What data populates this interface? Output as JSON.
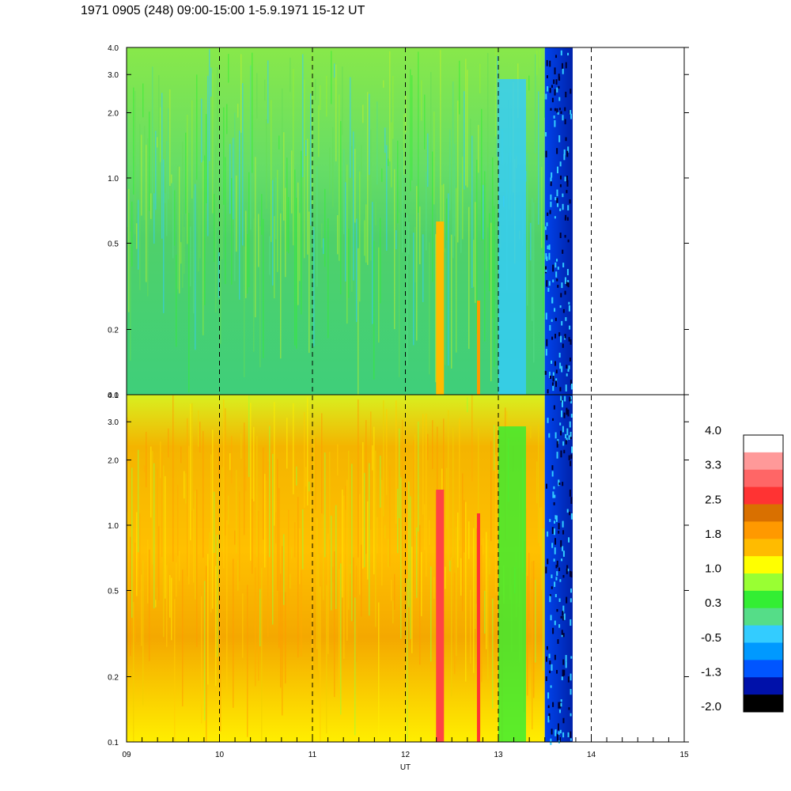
{
  "title": "1971 0905 (248) 09:00-15:00 1-5.9.1971  15-12 UT",
  "chart_data": {
    "type": "heatmap",
    "title": "1971 0905 (248) 09:00-15:00 1-5.9.1971  15-12 UT",
    "xlabel": "UT",
    "ylabel": "",
    "xlim": [
      9,
      15
    ],
    "ylim": [
      0.1,
      4.0
    ],
    "y_scale": "log",
    "x_ticks": [
      "09",
      "10",
      "11",
      "12",
      "13",
      "14",
      "15"
    ],
    "y_ticks": [
      "0.1",
      "0.2",
      "0.5",
      "1.0",
      "2.0",
      "3.0",
      "4.0"
    ],
    "dashed_lines_at": [
      10,
      11,
      12,
      13,
      14
    ],
    "data_end_x": 13.8,
    "panels": [
      {
        "name": "",
        "dominant_band": "green/cyan",
        "low_x_start": 13.5
      },
      {
        "name": "",
        "dominant_band": "yellow/orange",
        "low_x_start": 13.5
      }
    ],
    "colorbar": {
      "labels": [
        "4.0",
        "3.3",
        "2.5",
        "1.8",
        "1.0",
        "0.3",
        "-0.5",
        "-1.3",
        "-2.0"
      ],
      "colors": [
        "#ffffff",
        "#ff9999",
        "#ff6666",
        "#ff3333",
        "#d97000",
        "#ff9900",
        "#ffbb00",
        "#ffff00",
        "#99ff33",
        "#33ee33",
        "#55dd88",
        "#33ccff",
        "#0099ff",
        "#0055ff",
        "#0011aa",
        "#000000"
      ]
    }
  }
}
